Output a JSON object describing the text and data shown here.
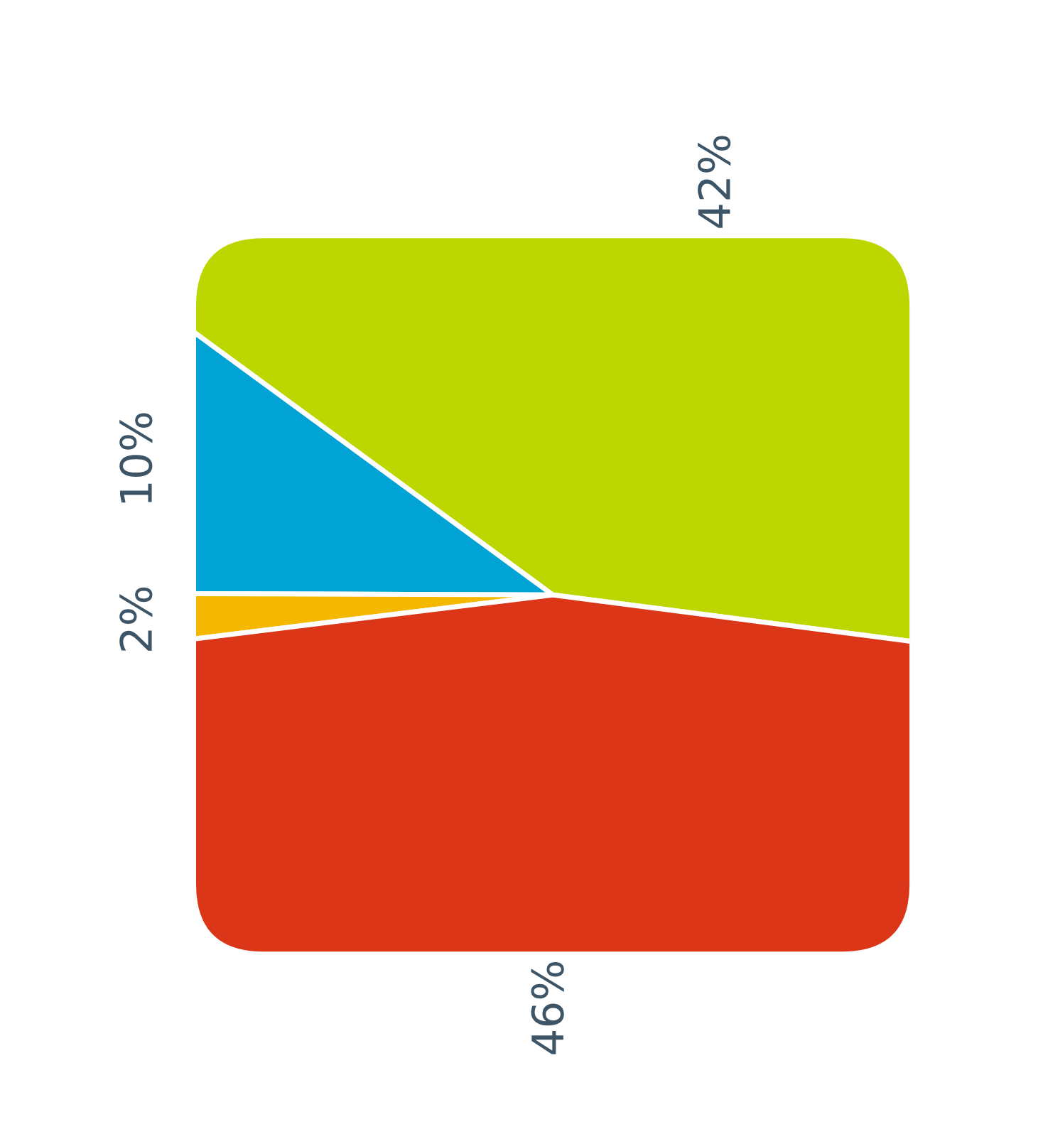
{
  "chart_data": {
    "type": "pie",
    "categories": [
      null,
      null,
      null,
      null
    ],
    "values": [
      42,
      10,
      2,
      46
    ],
    "colors": [
      "#bcd700",
      "#00a3d4",
      "#f5b800",
      "#dc3618"
    ],
    "value_labels": [
      "42%",
      "10%",
      "2%",
      "46%"
    ]
  }
}
